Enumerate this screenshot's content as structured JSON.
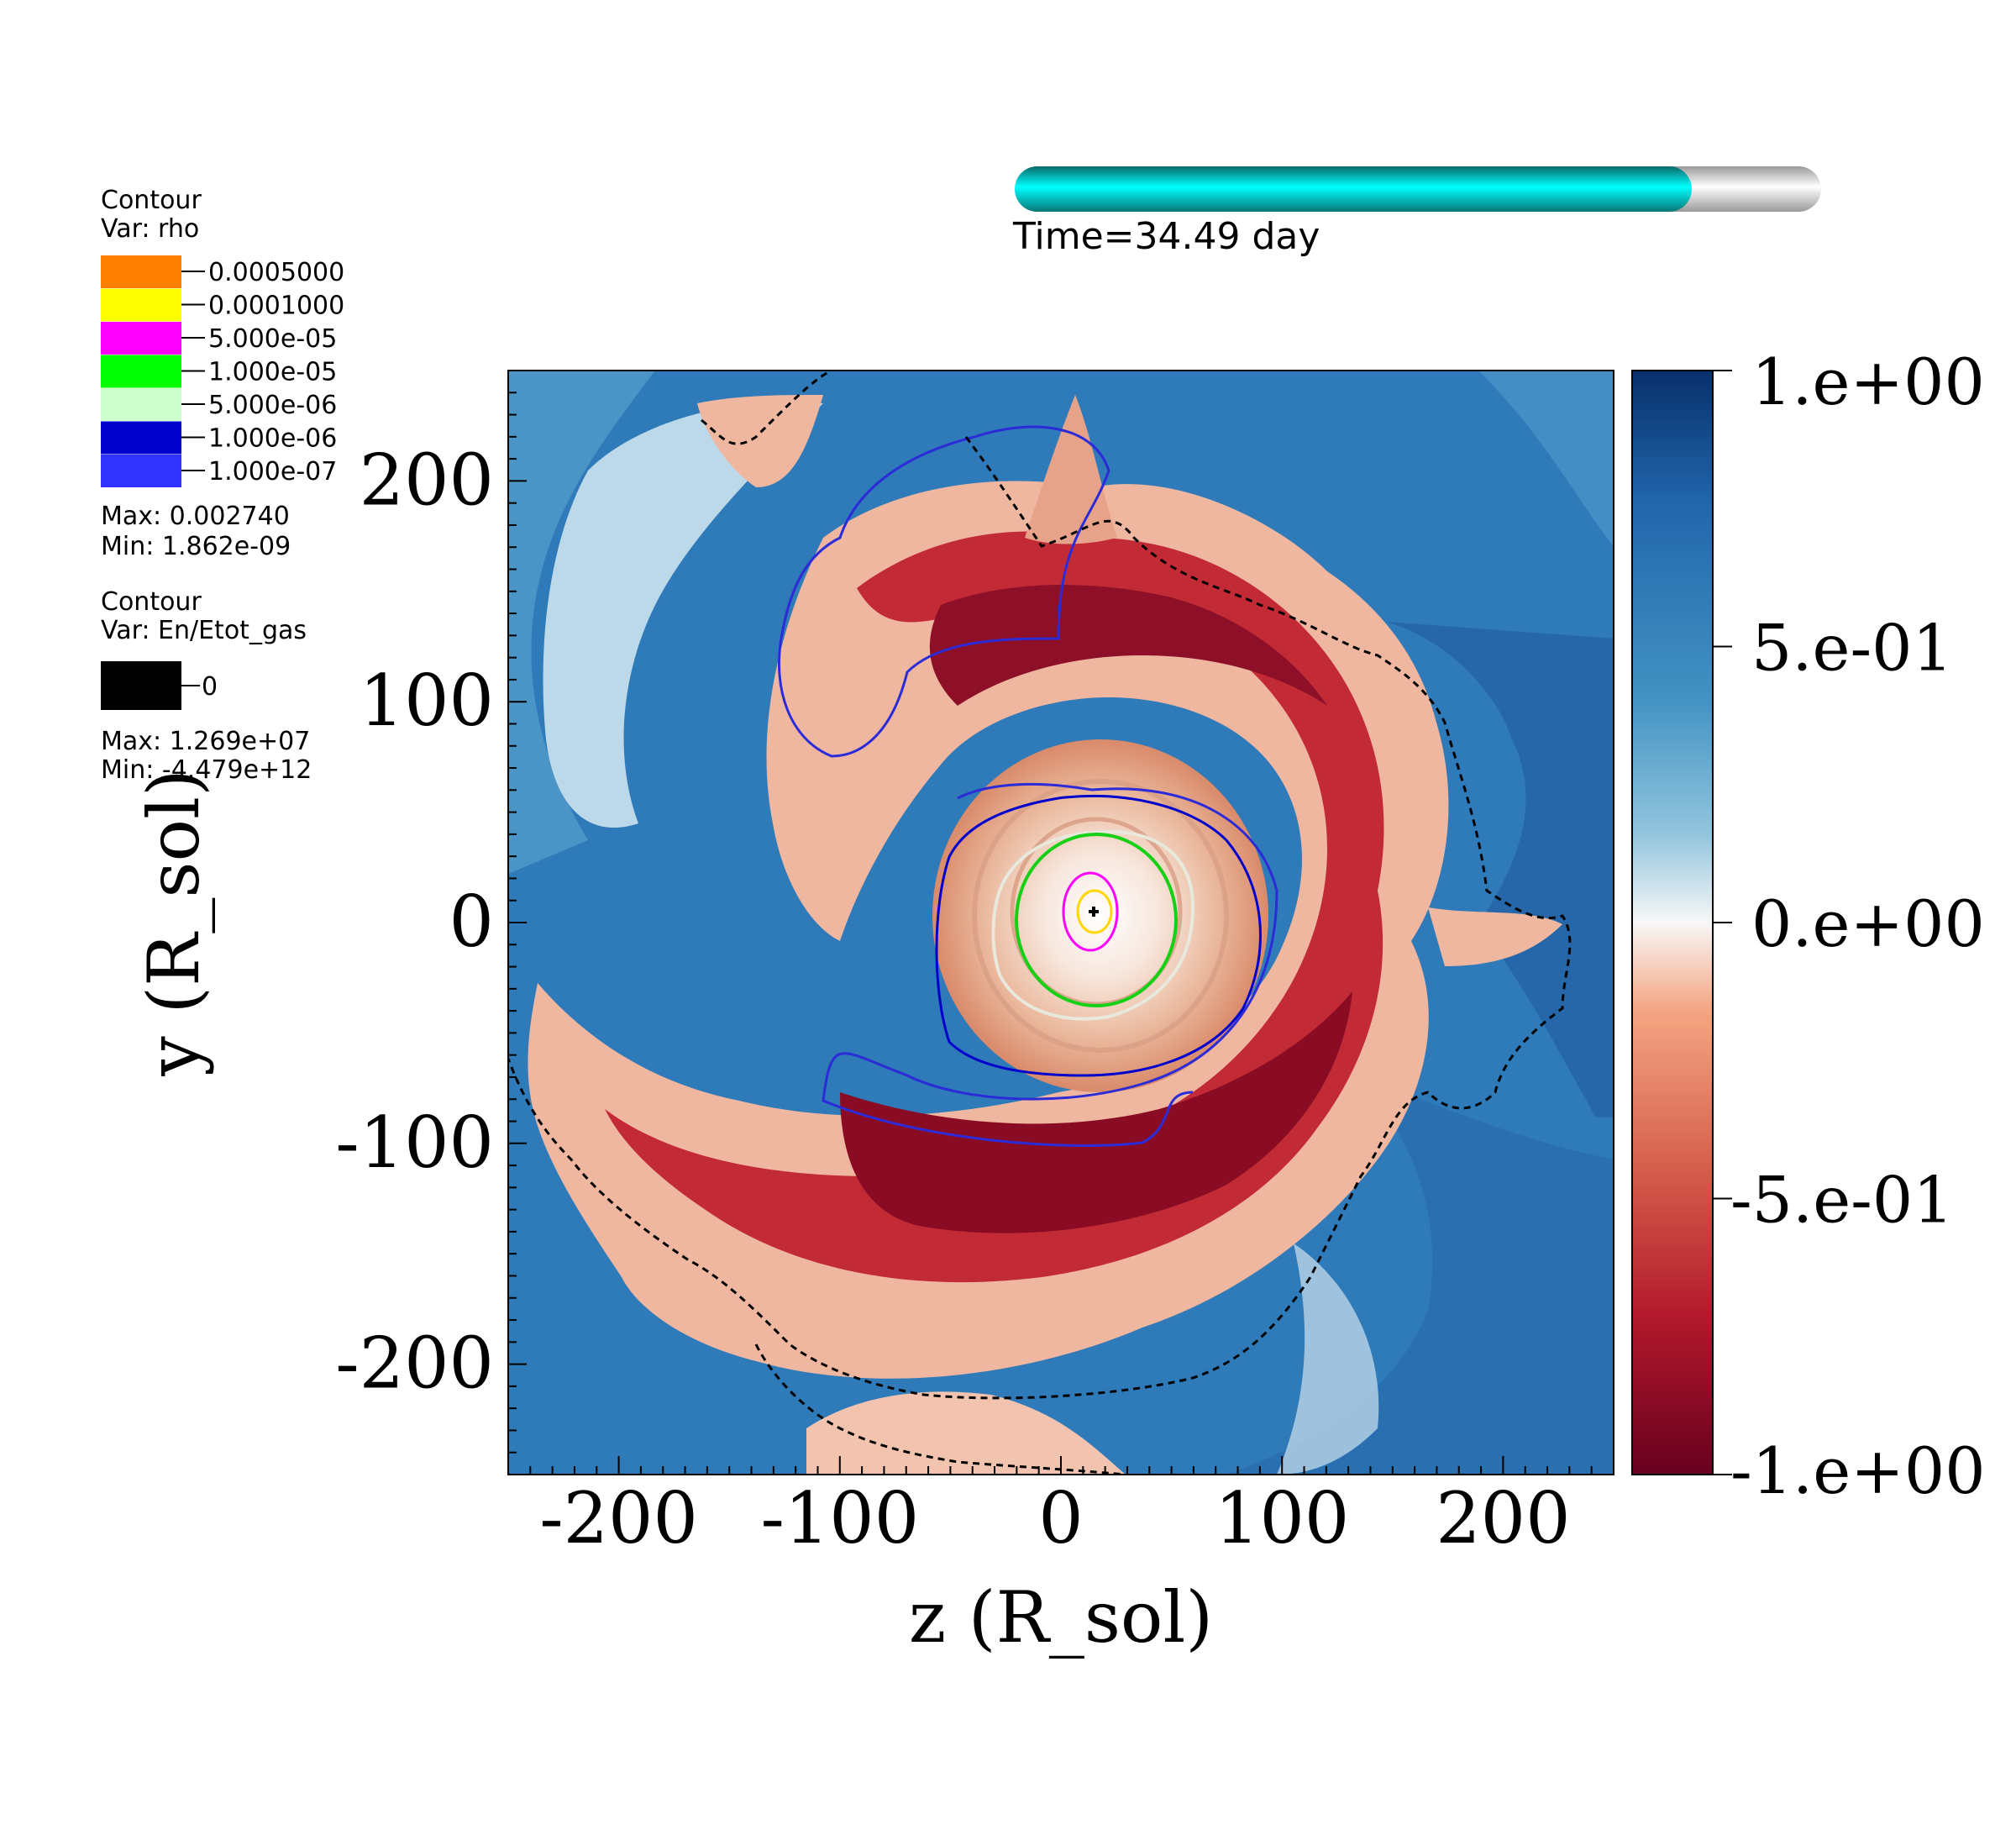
{
  "time": {
    "label": "Time=34.49 day",
    "progress": 0.84,
    "fill_color": "#00ffff",
    "empty_color": "#e8e8e8"
  },
  "legend_rho": {
    "title": "Contour",
    "var": "Var: rho",
    "entries": [
      {
        "label": "0.0005000",
        "color": "#ff8000"
      },
      {
        "label": "0.0001000",
        "color": "#ffff00"
      },
      {
        "label": "5.000e-05",
        "color": "#ff00ff"
      },
      {
        "label": "1.000e-05",
        "color": "#00ff00"
      },
      {
        "label": "5.000e-06",
        "color": "#ccffcc"
      },
      {
        "label": "1.000e-06",
        "color": "#0000cc"
      },
      {
        "label": "1.000e-07",
        "color": "#3333ff"
      }
    ],
    "max": "Max:  0.002740",
    "min": "Min:  1.862e-09"
  },
  "legend_energy": {
    "title": "Contour",
    "var": "Var: En/Etot_gas",
    "entries": [
      {
        "label": "0",
        "color": "#000000"
      }
    ],
    "max": "Max:  1.269e+07",
    "min": "Min: -4.479e+12"
  },
  "chart_data": {
    "type": "heatmap",
    "title": "",
    "xlabel": "z (R_sol)",
    "ylabel": "y (R_sol)",
    "xlim": [
      -250,
      250
    ],
    "ylim": [
      -250,
      250
    ],
    "xticks": [
      -200,
      -100,
      0,
      100,
      200
    ],
    "xtick_labels": [
      "-200",
      "-100",
      "0",
      "100",
      "200"
    ],
    "yticks": [
      -200,
      -100,
      0,
      100,
      200
    ],
    "ytick_labels": [
      "-200",
      "-100",
      "0",
      "100",
      "200"
    ],
    "colormap": "diverging blue-white-red",
    "colorbar": {
      "range": [
        -1.0,
        1.0
      ],
      "ticks": [
        1.0,
        0.5,
        0.0,
        -0.5,
        -1.0
      ],
      "tick_labels": [
        "1.e+00",
        "5.e-01",
        "0.e+00",
        "-5.e-01",
        "-1.e+00"
      ],
      "top_color": "#08306b",
      "mid_color": "#f7f7f7",
      "bottom_color": "#67001f"
    },
    "center": [
      10,
      5
    ]
  }
}
